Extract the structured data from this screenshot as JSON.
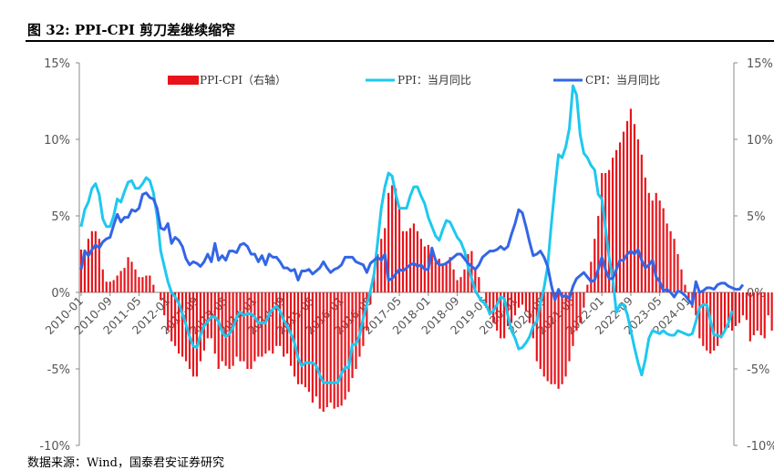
{
  "figure": {
    "title": "图 32:  PPI-CPI 剪刀差继续缩窄",
    "source": "数据来源：Wind，国泰君安证券研究"
  },
  "chart_data": {
    "type": "line",
    "title": "图 32:  PPI-CPI 剪刀差继续缩窄",
    "xlabel": "",
    "ylabel": "",
    "ylim": [
      -10,
      15
    ],
    "y2lim": [
      -10,
      15
    ],
    "yticks": [
      "15%",
      "10%",
      "5%",
      "0%",
      "-5%",
      "-10%"
    ],
    "y2ticks": [
      "15%",
      "10%",
      "5%",
      "0%",
      "-5%",
      "-10%"
    ],
    "xticks": [
      "2010-01",
      "2010-09",
      "2011-05",
      "2012-01",
      "2012-09",
      "2013-05",
      "2014-01",
      "2014-09",
      "2015-05",
      "2016-01",
      "2016-09",
      "2017-05",
      "2018-01",
      "2018-09",
      "2019-05",
      "2020-01",
      "2020-09",
      "2021-05",
      "2022-01",
      "2022-09",
      "2023-05",
      "2024-01"
    ],
    "grid": false,
    "legend_position": "top",
    "colors": {
      "bar": "#e8141b",
      "ppi": "#1ec8f0",
      "cpi": "#3366e6"
    },
    "series": [
      {
        "name": "PPI-CPI（右轴）",
        "axis": "right",
        "type": "bar",
        "values": [
          2.8,
          2.8,
          3.5,
          4,
          4,
          3.5,
          1.5,
          0.7,
          0.7,
          0.8,
          1.1,
          1.4,
          1.6,
          2.3,
          2,
          1.5,
          1,
          1,
          1.1,
          1.1,
          0.5,
          0,
          -0.5,
          -1.5,
          -2.5,
          -3.2,
          -3.5,
          -4,
          -4.2,
          -4.5,
          -5,
          -5.5,
          -5.5,
          -4.5,
          -3.8,
          -3,
          -3,
          -4,
          -5,
          -4.5,
          -4.8,
          -5,
          -4.8,
          -4.2,
          -4.5,
          -4.5,
          -5,
          -5,
          -4.5,
          -4.2,
          -4.2,
          -4,
          -3.8,
          -4,
          -3.5,
          -3.5,
          -4.2,
          -4,
          -4.8,
          -5.5,
          -6,
          -6,
          -6.2,
          -6.5,
          -7.2,
          -6.8,
          -7.6,
          -7.8,
          -7.5,
          -7.2,
          -7.6,
          -7.5,
          -7.4,
          -7,
          -6.5,
          -5.6,
          -5,
          -4.2,
          -3.5,
          -2.5,
          -0.8,
          1.2,
          2.5,
          3.5,
          4.2,
          6.5,
          7,
          6.8,
          5.5,
          4,
          4,
          4.2,
          4.5,
          4,
          3.5,
          3,
          3.1,
          2.5,
          2,
          2.2,
          1.8,
          2,
          2.3,
          1.5,
          0.8,
          1,
          1.5,
          2.5,
          2.7,
          1.5,
          1,
          0,
          -1,
          -1.5,
          -2,
          -2.5,
          -3,
          -3,
          -2.2,
          -2,
          -1.5,
          -1,
          -0.8,
          -1.2,
          -2,
          -3,
          -4.5,
          -5,
          -5.5,
          -5.8,
          -6,
          -6,
          -6.3,
          -6,
          -5.5,
          -4.5,
          -3.5,
          -2.5,
          -2,
          -1,
          0.5,
          2,
          3.5,
          5,
          7.8,
          7.8,
          8,
          8.8,
          9.3,
          9.8,
          10.5,
          11.2,
          12,
          11,
          10,
          9,
          7.5,
          6.5,
          6,
          6.5,
          6,
          5.5,
          4.5,
          4,
          3.5,
          2.5,
          1.5,
          0.5,
          -0.5,
          -1,
          -1.5,
          -3,
          -3.5,
          -3.8,
          -4,
          -3.8,
          -3.5,
          -3,
          -2.5,
          -2.3,
          -2.5,
          -2.2,
          -2,
          -1.5,
          -1.8,
          -3.2,
          -2.8,
          -2.5,
          -2.8,
          -3,
          -1.5,
          -2.5,
          -1.5,
          -1.2,
          -1
        ]
      },
      {
        "name": "PPI：当月同比",
        "axis": "left",
        "type": "line",
        "values": [
          4.3,
          5.4,
          5.9,
          6.8,
          7.1,
          6.4,
          4.8,
          4.3,
          4.3,
          5,
          6.1,
          5.9,
          6.6,
          7.2,
          7.3,
          6.8,
          6.8,
          7.1,
          7.5,
          7.3,
          6.5,
          5,
          2.7,
          1.7,
          0.7,
          0,
          -0.3,
          -0.7,
          -1.4,
          -2.1,
          -2.9,
          -3.5,
          -3.6,
          -2.8,
          -2.2,
          -1.9,
          -1.6,
          -1.6,
          -1.9,
          -2.6,
          -2.9,
          -2.7,
          -2.3,
          -1.6,
          -1.3,
          -1.5,
          -1.4,
          -1.4,
          -1.6,
          -2,
          -2,
          -2,
          -1.4,
          -1.1,
          -0.9,
          -1.2,
          -1.8,
          -2.2,
          -2.7,
          -3.3,
          -4.3,
          -4.8,
          -4.6,
          -4.6,
          -4.6,
          -4.8,
          -5.4,
          -5.9,
          -5.9,
          -5.9,
          -5.9,
          -5.9,
          -5.3,
          -4.9,
          -4.9,
          -3.4,
          -3.4,
          -2.8,
          -1.7,
          -0.8,
          0.1,
          1.2,
          3.3,
          5.5,
          6.9,
          7.8,
          7.6,
          6.4,
          5.5,
          5.5,
          5.5,
          6.3,
          6.9,
          6.9,
          6.3,
          5.8,
          4.9,
          4.3,
          3.7,
          3.4,
          4.1,
          4.7,
          4.6,
          4.1,
          3.6,
          3.3,
          2.7,
          1.7,
          0.9,
          0.1,
          -0.3,
          -0.6,
          -0.8,
          -1.4,
          -1.2,
          -0.8,
          -0.3,
          -0.4,
          -1.5,
          -2.5,
          -3,
          -3.7,
          -3.6,
          -3.3,
          -2.9,
          -2.2,
          -1.9,
          -0.7,
          0.3,
          1.7,
          4.4,
          6.8,
          9,
          8.8,
          9.5,
          10.7,
          13.5,
          12.9,
          10.3,
          9.1,
          8.8,
          8.3,
          8,
          6.4,
          6.1,
          4.2,
          2.3,
          0.9,
          -1.3,
          -0.8,
          -0.8,
          -1.4,
          -2.5,
          -3.6,
          -4.6,
          -5.4,
          -4.4,
          -3,
          -2.5,
          -2.6,
          -2.7,
          -2.5,
          -2.7,
          -2.8,
          -2.8,
          -2.5,
          -2.6,
          -2.7,
          -2.8,
          -2.7,
          -1.9,
          -1,
          -0.8,
          -0.8,
          -1.8,
          -2.8,
          -2.8,
          -2.9,
          -2.5,
          -2,
          -1.2
        ],
        "color": "#1ec8f0"
      },
      {
        "name": "CPI：当月同比",
        "axis": "left",
        "type": "line",
        "values": [
          1.5,
          2.7,
          2.4,
          2.8,
          3.1,
          2.9,
          3.3,
          3.5,
          3.6,
          4.4,
          5.1,
          4.6,
          4.9,
          4.9,
          5.4,
          5.3,
          5.5,
          6.4,
          6.5,
          6.2,
          6.1,
          5.5,
          4.2,
          4.1,
          4.5,
          3.2,
          3.6,
          3.4,
          3,
          2.2,
          1.8,
          2,
          1.9,
          1.7,
          2,
          2.5,
          2,
          3.2,
          2.1,
          2.4,
          2.1,
          2.7,
          2.7,
          2.6,
          3.1,
          3.2,
          3,
          2.5,
          2.5,
          2,
          2.4,
          1.8,
          2.5,
          2.3,
          2.3,
          2,
          1.6,
          1.6,
          1.4,
          1.5,
          0.8,
          1.4,
          1.4,
          1.5,
          1.2,
          1.4,
          1.6,
          2,
          1.6,
          1.3,
          1.5,
          1.6,
          1.8,
          2.3,
          2.3,
          2.3,
          2,
          1.9,
          1.8,
          1.3,
          1.9,
          2.1,
          2.3,
          2.1,
          2.5,
          0.8,
          0.9,
          1.2,
          1.5,
          1.4,
          1.6,
          1.8,
          1.9,
          1.7,
          1.8,
          1.5,
          1.5,
          2.9,
          2.1,
          1.8,
          1.8,
          1.9,
          2.1,
          2.3,
          2.5,
          2.5,
          2.2,
          1.9,
          1.7,
          1.5,
          1.8,
          2.3,
          2.5,
          2.7,
          2.7,
          2.8,
          3,
          2.8,
          3,
          3.8,
          4.5,
          5.4,
          5.2,
          4.3,
          3.3,
          2.4,
          2.5,
          2.7,
          2.3,
          1.7,
          0.5,
          -0.5,
          0.2,
          -0.3,
          -0.2,
          -0.4,
          0.4,
          0.9,
          1.1,
          1.3,
          1,
          0.7,
          0.8,
          1.5,
          2.3,
          1.5,
          0.9,
          0.9,
          1.5,
          2.1,
          2.1,
          2.5,
          2.7,
          2.5,
          2.8,
          2.1,
          1.6,
          1.8,
          2.1,
          1,
          0.7,
          0.1,
          0.2,
          0,
          -0.3,
          0.1,
          0,
          -0.2,
          -0.5,
          -0.8,
          0.7,
          0,
          0.1,
          0.3,
          0.3,
          0.2,
          0.5,
          0.6,
          0.6,
          0.4,
          0.3,
          0.2,
          0.2,
          0.5
        ],
        "color": "#3366e6"
      }
    ]
  }
}
